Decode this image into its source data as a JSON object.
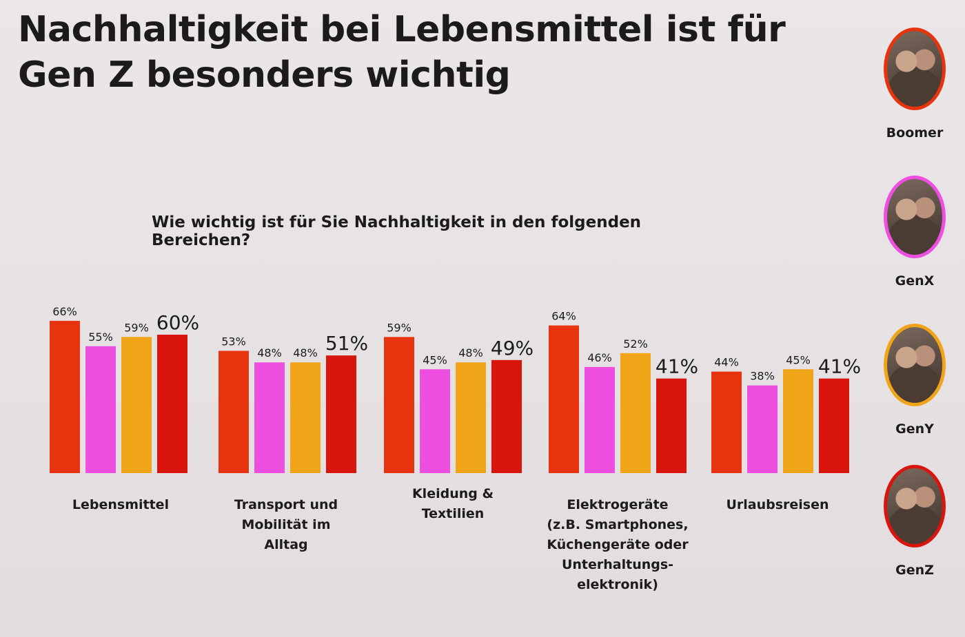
{
  "title": "Nachhaltigkeit bei Lebensmittel ist für Gen Z besonders wichtig",
  "chart_data": {
    "type": "bar",
    "title": "Wie wichtig ist für Sie Nachhaltigkeit in den folgenden Bereichen?",
    "xlabel": "",
    "ylabel": "",
    "ylim": [
      0,
      70
    ],
    "grid": false,
    "legend_position": "right",
    "categories": [
      [
        "Lebensmittel"
      ],
      [
        "Transport und",
        "Mobilität im",
        "Alltag"
      ],
      [
        "Kleidung &",
        "Textilien"
      ],
      [
        "Elektrogeräte",
        "(z.B. Smartphones,",
        "Küchengeräte oder",
        "Unterhaltungs-",
        "elektronik)"
      ],
      [
        "Urlaubsreisen"
      ]
    ],
    "series": [
      {
        "name": "Boomer",
        "color": "#e8330f",
        "values": [
          66,
          53,
          59,
          64,
          44
        ],
        "labels": [
          "66%",
          "53%",
          "59%",
          "64%",
          "44%"
        ]
      },
      {
        "name": "GenX",
        "color": "#ee4fe0",
        "values": [
          55,
          48,
          45,
          46,
          38
        ],
        "labels": [
          "55%",
          "48%",
          "45%",
          "46%",
          "38%"
        ]
      },
      {
        "name": "GenY",
        "color": "#f0a418",
        "values": [
          59,
          48,
          48,
          52,
          45
        ],
        "labels": [
          "59%",
          "48%",
          "48%",
          "52%",
          "45%"
        ]
      },
      {
        "name": "GenZ",
        "color": "#d8160d",
        "values": [
          60,
          51,
          49,
          41,
          41
        ],
        "labels": [
          "60%",
          "51%",
          "49%",
          "41%",
          "41%"
        ]
      }
    ]
  }
}
